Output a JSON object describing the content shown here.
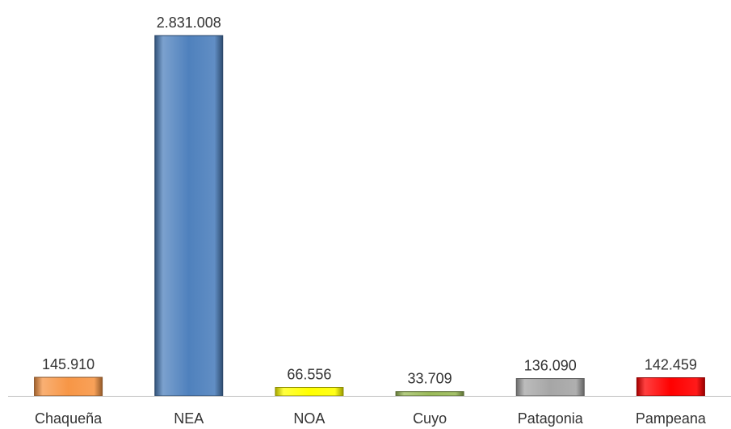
{
  "chart_data": {
    "type": "bar",
    "categories": [
      "Chaqueña",
      "NEA",
      "NOA",
      "Cuyo",
      "Patagonia",
      "Pampeana"
    ],
    "values": [
      145910,
      2831008,
      66556,
      33709,
      136090,
      142459
    ],
    "value_labels": [
      "145.910",
      "2.831.008",
      "66.556",
      "33.709",
      "136.090",
      "142.459"
    ],
    "colors": [
      "#F79646",
      "#4F81BD",
      "#FFFF00",
      "#9BBB59",
      "#A6A6A6",
      "#FF0000"
    ],
    "title": "",
    "xlabel": "",
    "ylabel": "",
    "ylim": [
      0,
      2831008
    ],
    "grid": false,
    "legend": "none"
  }
}
